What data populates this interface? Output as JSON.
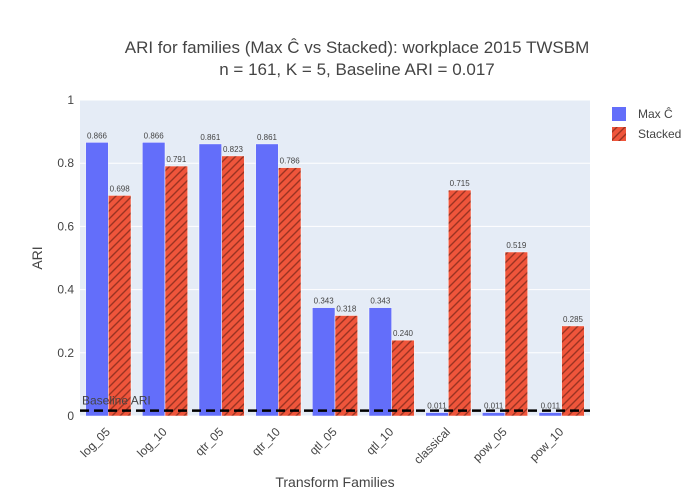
{
  "chart_data": {
    "type": "bar",
    "title_lines": [
      "ARI for families (Max Ĉ vs Stacked): workplace 2015 TWSBM",
      "n = 161, K = 5, Baseline ARI = 0.017"
    ],
    "xlabel": "Transform Families",
    "ylabel": "ARI",
    "ylim": [
      0,
      1
    ],
    "yticks": [
      0,
      0.2,
      0.4,
      0.6,
      0.8,
      1
    ],
    "ytick_labels": [
      "0",
      "0.2",
      "0.4",
      "0.6",
      "0.8",
      "1"
    ],
    "categories": [
      "log_05",
      "log_10",
      "qtr_05",
      "qtr_10",
      "qtl_05",
      "qtl_10",
      "classical",
      "pow_05",
      "pow_10"
    ],
    "series": [
      {
        "name": "Max Ĉ",
        "color": "#636efa",
        "pattern": "none",
        "values": [
          0.866,
          0.866,
          0.861,
          0.861,
          0.343,
          0.343,
          0.011,
          0.011,
          0.011
        ],
        "labels": [
          "0.866",
          "0.866",
          "0.861",
          "0.861",
          "0.343",
          "0.343",
          "0.011",
          "0.011",
          "0.011"
        ]
      },
      {
        "name": "Stacked",
        "color": "#ef553b",
        "pattern": "diagonal-hatch",
        "values": [
          0.698,
          0.791,
          0.823,
          0.786,
          0.318,
          0.24,
          0.715,
          0.519,
          0.285
        ],
        "labels": [
          "0.698",
          "0.791",
          "0.823",
          "0.786",
          "0.318",
          "0.240",
          "0.715",
          "0.519",
          "0.285"
        ]
      }
    ],
    "baseline": {
      "value": 0.017,
      "label": "Baseline ARI",
      "style": "dashed",
      "color": "#000000"
    },
    "plot_background": "#e5ecf6",
    "grid": true,
    "legend_position": "top-right"
  }
}
